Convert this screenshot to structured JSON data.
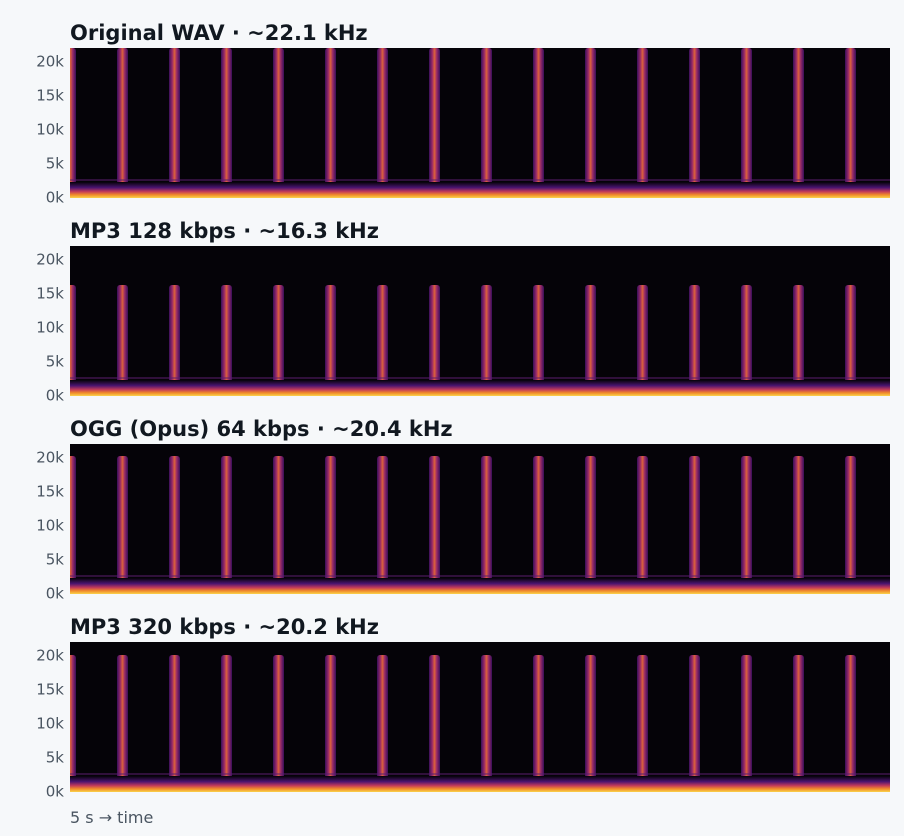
{
  "panels": [
    {
      "title": "Original WAV  ·  ~22.1 kHz",
      "yticks": [
        "0k",
        "5k",
        "10k",
        "15k",
        "20k"
      ]
    },
    {
      "title": "MP3 128 kbps  ·  ~16.3 kHz",
      "yticks": [
        "0k",
        "5k",
        "10k",
        "15k",
        "20k"
      ]
    },
    {
      "title": "OGG (Opus) 64 kbps  ·  ~20.4 kHz",
      "yticks": [
        "0k",
        "5k",
        "10k",
        "15k",
        "20k"
      ]
    },
    {
      "title": "MP3 320 kbps  ·  ~20.2 kHz",
      "yticks": [
        "0k",
        "5k",
        "10k",
        "15k",
        "20k"
      ]
    }
  ],
  "footer": "5 s  →  time"
}
